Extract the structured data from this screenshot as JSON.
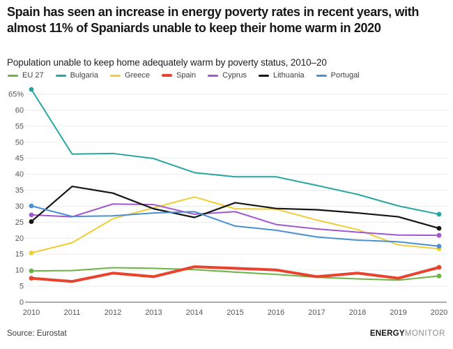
{
  "header": {
    "title": "Spain has seen an increase in energy poverty rates in recent years, with almost 11% of Spaniards unable to keep their home warm in 2020",
    "subtitle": "Population unable to keep home adequately warm by poverty status, 2010–20"
  },
  "chart_data": {
    "type": "line",
    "x": [
      2010,
      2011,
      2012,
      2013,
      2014,
      2015,
      2016,
      2017,
      2018,
      2019,
      2020
    ],
    "series": [
      {
        "name": "EU 27",
        "color": "#6db344",
        "line_width": 2,
        "values": [
          9.8,
          9.9,
          10.8,
          10.6,
          10.2,
          9.4,
          8.7,
          7.8,
          7.3,
          6.9,
          8.2
        ]
      },
      {
        "name": "Bulgaria",
        "color": "#26a5a2",
        "line_width": 2,
        "values": [
          66.5,
          46.3,
          46.5,
          44.9,
          40.5,
          39.2,
          39.2,
          36.5,
          33.7,
          30.1,
          27.5
        ]
      },
      {
        "name": "Greece",
        "color": "#efcd33",
        "line_width": 2,
        "values": [
          15.4,
          18.6,
          26.1,
          29.5,
          32.9,
          29.2,
          29.1,
          25.7,
          22.7,
          17.9,
          16.7
        ]
      },
      {
        "name": "Spain",
        "color": "#e8432d",
        "line_width": 4,
        "values": [
          7.5,
          6.5,
          9.1,
          8.0,
          11.1,
          10.6,
          10.1,
          8.0,
          9.1,
          7.5,
          10.9
        ]
      },
      {
        "name": "Cyprus",
        "color": "#a158cf",
        "line_width": 2,
        "values": [
          27.3,
          26.7,
          30.7,
          30.5,
          27.5,
          28.3,
          24.3,
          22.9,
          21.9,
          21.0,
          20.9
        ]
      },
      {
        "name": "Lithuania",
        "color": "#151515",
        "line_width": 2.2,
        "values": [
          25.2,
          36.2,
          34.1,
          29.2,
          26.5,
          31.1,
          29.3,
          28.9,
          27.9,
          26.7,
          23.1
        ]
      },
      {
        "name": "Portugal",
        "color": "#4a8fd2",
        "line_width": 2,
        "values": [
          30.1,
          26.8,
          27.0,
          27.9,
          28.3,
          23.8,
          22.5,
          20.4,
          19.4,
          18.9,
          17.5
        ]
      }
    ],
    "ylim": [
      0,
      65
    ],
    "ytick_step": 5,
    "ytick_top_label": "65%",
    "grid": true,
    "legend_position": "top",
    "endpoint_dots": true
  },
  "footer": {
    "source": "Source: Eurostat",
    "brand_bold": "ENERGY",
    "brand_light": "MONITOR"
  }
}
